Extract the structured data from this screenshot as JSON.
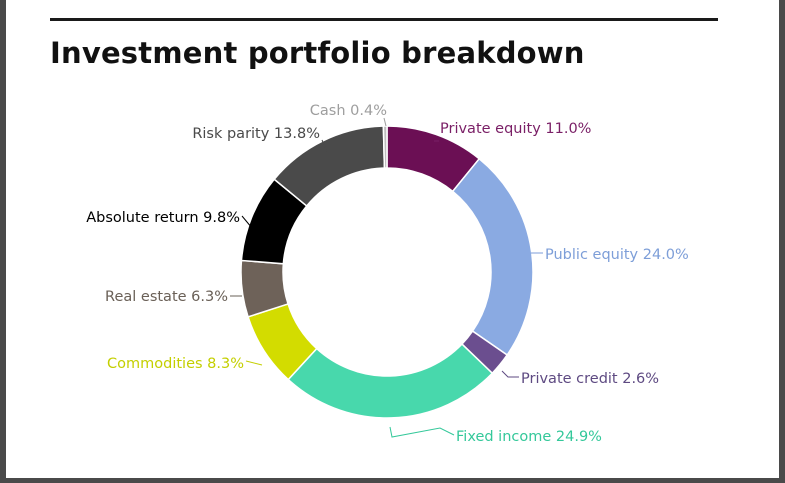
{
  "title": "Investment portfolio breakdown",
  "chart_data": {
    "type": "pie",
    "variant": "donut",
    "title": "Investment portfolio breakdown",
    "slices": [
      {
        "name": "Private equity",
        "value": 11.0,
        "label": "Private equity 11.0%",
        "color": "#6b0f54",
        "label_color": "#7a1f66"
      },
      {
        "name": "Public equity",
        "value": 24.0,
        "label": "Public equity 24.0%",
        "color": "#8aaae2",
        "label_color": "#7d9ed8"
      },
      {
        "name": "Private credit",
        "value": 2.6,
        "label": "Private credit 2.6%",
        "color": "#6b4e8f",
        "label_color": "#5e4a82"
      },
      {
        "name": "Fixed income",
        "value": 24.9,
        "label": "Fixed income 24.9%",
        "color": "#48d8ac",
        "label_color": "#34c89a"
      },
      {
        "name": "Commodities",
        "value": 8.3,
        "label": "Commodities 8.3%",
        "color": "#d3dc00",
        "label_color": "#c4cf00"
      },
      {
        "name": "Real estate",
        "value": 6.3,
        "label": "Real estate 6.3%",
        "color": "#6e6259",
        "label_color": "#6a6057"
      },
      {
        "name": "Absolute return",
        "value": 9.8,
        "label": "Absolute return 9.8%",
        "color": "#000000",
        "label_color": "#000000"
      },
      {
        "name": "Risk parity",
        "value": 13.8,
        "label": "Risk parity 13.8%",
        "color": "#4a4a4a",
        "label_color": "#4a4a4a"
      },
      {
        "name": "Cash",
        "value": 0.4,
        "label": "Cash 0.4%",
        "color": "#bdbdbd",
        "label_color": "#9e9e9e"
      }
    ],
    "legend": "none",
    "labels": "outside with leader lines"
  }
}
